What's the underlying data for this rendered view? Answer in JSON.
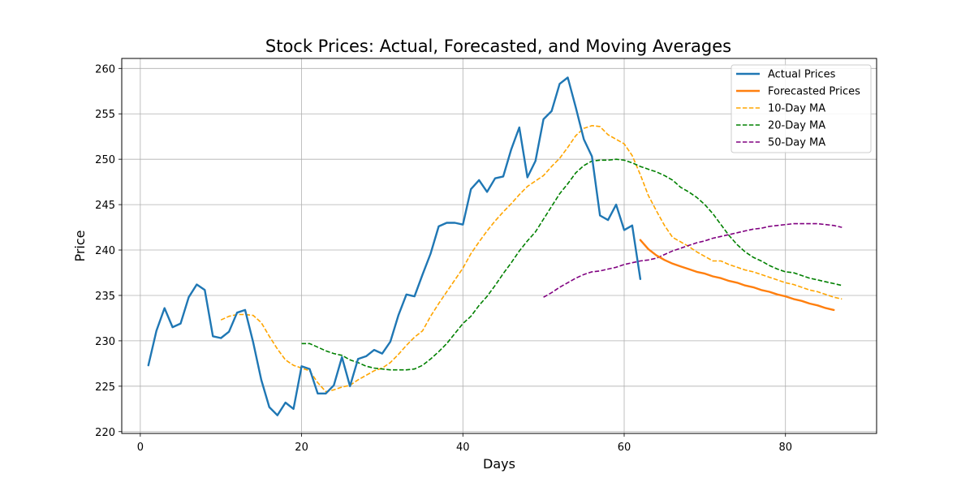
{
  "chart_data": {
    "type": "line",
    "title": "Stock Prices: Actual, Forecasted, and Moving Averages",
    "xlabel": "Days",
    "ylabel": "Price",
    "xlim": [
      -2.3,
      91.3
    ],
    "ylim": [
      219.8,
      261.1
    ],
    "xticks": [
      0,
      20,
      40,
      60,
      80
    ],
    "yticks": [
      220,
      225,
      230,
      235,
      240,
      245,
      250,
      255,
      260
    ],
    "grid": true,
    "legend_position": "top-right",
    "series": [
      {
        "name": "Actual Prices",
        "color": "#1f77b4",
        "style": "solid",
        "x": [
          1,
          2,
          3,
          4,
          5,
          6,
          7,
          8,
          9,
          10,
          11,
          12,
          13,
          14,
          15,
          16,
          17,
          18,
          19,
          20,
          21,
          22,
          23,
          24,
          25,
          26,
          27,
          28,
          29,
          30,
          31,
          32,
          33,
          34,
          35,
          36,
          37,
          38,
          39,
          40,
          41,
          42,
          43,
          44,
          45,
          46,
          47,
          48,
          49,
          50,
          51,
          52,
          53,
          54,
          55,
          56,
          57,
          58,
          59,
          60,
          61,
          62
        ],
        "values": [
          227.3,
          231.1,
          233.6,
          231.5,
          231.9,
          234.8,
          236.2,
          235.6,
          230.5,
          230.3,
          231.0,
          233.1,
          233.4,
          229.8,
          225.7,
          222.7,
          221.8,
          223.2,
          222.5,
          227.2,
          226.9,
          224.2,
          224.2,
          225.1,
          228.2,
          225.0,
          228.0,
          228.3,
          229.0,
          228.6,
          229.9,
          232.8,
          235.1,
          234.9,
          237.3,
          239.6,
          242.6,
          243.0,
          243.0,
          242.8,
          246.7,
          247.7,
          246.4,
          247.9,
          248.1,
          251.1,
          253.5,
          248.0,
          249.8,
          254.4,
          255.3,
          258.3,
          259.0,
          255.7,
          252.2,
          250.3,
          243.8,
          243.3,
          245.0,
          242.2,
          242.7,
          236.8
        ]
      },
      {
        "name": "Forecasted Prices",
        "color": "#ff7f0e",
        "style": "solid",
        "x": [
          62,
          63,
          64,
          65,
          66,
          67,
          68,
          69,
          70,
          71,
          72,
          73,
          74,
          75,
          76,
          77,
          78,
          79,
          80,
          81,
          82,
          83,
          84,
          85,
          86
        ],
        "values": [
          241.1,
          240.1,
          239.4,
          238.9,
          238.5,
          238.2,
          237.9,
          237.6,
          237.4,
          237.1,
          236.9,
          236.6,
          236.4,
          236.1,
          235.9,
          235.6,
          235.4,
          235.1,
          234.9,
          234.6,
          234.4,
          234.1,
          233.9,
          233.6,
          233.4
        ]
      },
      {
        "name": "10-Day MA",
        "color": "#ffa500",
        "style": "dashed",
        "x": [
          10,
          11,
          12,
          13,
          14,
          15,
          16,
          17,
          18,
          19,
          20,
          21,
          22,
          23,
          24,
          25,
          26,
          27,
          28,
          29,
          30,
          31,
          32,
          33,
          34,
          35,
          36,
          37,
          38,
          39,
          40,
          41,
          42,
          43,
          44,
          45,
          46,
          47,
          48,
          49,
          50,
          51,
          52,
          53,
          54,
          55,
          56,
          57,
          58,
          59,
          60,
          61,
          62,
          63,
          64,
          65,
          66,
          67,
          68,
          69,
          70,
          71,
          72,
          73,
          74,
          75,
          76,
          77,
          78,
          79,
          80,
          81,
          82,
          83,
          84,
          85,
          86,
          87
        ],
        "values": [
          232.3,
          232.7,
          232.9,
          232.9,
          232.8,
          232.0,
          230.5,
          229.1,
          227.9,
          227.3,
          227.0,
          226.7,
          225.4,
          224.4,
          224.6,
          224.9,
          225.1,
          225.7,
          226.2,
          226.7,
          227.0,
          227.6,
          228.5,
          229.5,
          230.4,
          231.1,
          232.7,
          234.1,
          235.4,
          236.7,
          238.0,
          239.6,
          240.9,
          242.1,
          243.2,
          244.2,
          245.1,
          246.1,
          247.0,
          247.6,
          248.2,
          249.2,
          250.1,
          251.3,
          252.6,
          253.4,
          253.7,
          253.6,
          252.7,
          252.2,
          251.7,
          250.4,
          248.3,
          246.0,
          244.3,
          242.7,
          241.4,
          240.9,
          240.4,
          239.8,
          239.3,
          238.8,
          238.8,
          238.4,
          238.1,
          237.8,
          237.6,
          237.3,
          237.0,
          236.7,
          236.4,
          236.2,
          235.9,
          235.6,
          235.4,
          235.1,
          234.8,
          234.6
        ]
      },
      {
        "name": "20-Day MA",
        "color": "#008000",
        "style": "dashed",
        "x": [
          20,
          21,
          22,
          23,
          24,
          25,
          26,
          27,
          28,
          29,
          30,
          31,
          32,
          33,
          34,
          35,
          36,
          37,
          38,
          39,
          40,
          41,
          42,
          43,
          44,
          45,
          46,
          47,
          48,
          49,
          50,
          51,
          52,
          53,
          54,
          55,
          56,
          57,
          58,
          59,
          60,
          61,
          62,
          63,
          64,
          65,
          66,
          67,
          68,
          69,
          70,
          71,
          72,
          73,
          74,
          75,
          76,
          77,
          78,
          79,
          80,
          81,
          82,
          83,
          84,
          85,
          86,
          87
        ],
        "values": [
          229.7,
          229.7,
          229.3,
          228.9,
          228.6,
          228.4,
          227.9,
          227.6,
          227.2,
          227.0,
          226.9,
          226.8,
          226.8,
          226.8,
          226.9,
          227.3,
          228.0,
          228.8,
          229.7,
          230.8,
          231.9,
          232.7,
          233.9,
          234.9,
          236.1,
          237.4,
          238.6,
          239.9,
          241.0,
          242.0,
          243.4,
          244.8,
          246.2,
          247.3,
          248.5,
          249.3,
          249.8,
          249.9,
          249.9,
          250.0,
          249.9,
          249.6,
          249.2,
          248.9,
          248.6,
          248.2,
          247.7,
          246.9,
          246.4,
          245.8,
          245.0,
          244.0,
          242.8,
          241.6,
          240.6,
          239.8,
          239.2,
          238.8,
          238.3,
          237.9,
          237.6,
          237.5,
          237.2,
          236.9,
          236.7,
          236.5,
          236.3,
          236.1
        ]
      },
      {
        "name": "50-Day MA",
        "color": "#800080",
        "style": "dashed",
        "x": [
          50,
          51,
          52,
          53,
          54,
          55,
          56,
          57,
          58,
          59,
          60,
          61,
          62,
          63,
          64,
          65,
          66,
          67,
          68,
          69,
          70,
          71,
          72,
          73,
          74,
          75,
          76,
          77,
          78,
          79,
          80,
          81,
          82,
          83,
          84,
          85,
          86,
          87
        ],
        "values": [
          234.8,
          235.3,
          235.9,
          236.4,
          236.9,
          237.3,
          237.6,
          237.7,
          237.9,
          238.1,
          238.4,
          238.6,
          238.8,
          238.9,
          239.1,
          239.5,
          239.9,
          240.2,
          240.5,
          240.8,
          241.0,
          241.3,
          241.5,
          241.7,
          241.9,
          242.1,
          242.3,
          242.4,
          242.6,
          242.7,
          242.8,
          242.9,
          242.9,
          242.9,
          242.9,
          242.8,
          242.7,
          242.5
        ]
      }
    ]
  }
}
